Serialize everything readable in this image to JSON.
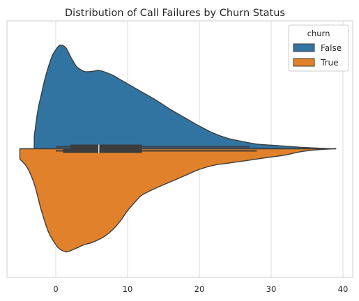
{
  "chart_data": {
    "type": "violin",
    "title": "Distribution of Call Failures by Churn Status",
    "xlabel": "",
    "ylabel": "",
    "xlim": [
      -7,
      41
    ],
    "x_ticks": [
      0,
      10,
      20,
      30,
      40
    ],
    "x_tick_labels": [
      "0",
      "10",
      "20",
      "30",
      "40"
    ],
    "grid": "vertical",
    "split": true,
    "legend": {
      "title": "churn",
      "placement": "top-right",
      "entries": [
        {
          "label": "False",
          "color": "#3274a1"
        },
        {
          "label": "True",
          "color": "#e1812c"
        }
      ]
    },
    "series": [
      {
        "name": "False",
        "side": "upper",
        "color": "#3274a1",
        "density_curve": [
          [
            -3,
            0.0
          ],
          [
            -3,
            0.12
          ],
          [
            -2.5,
            0.37
          ],
          [
            -2,
            0.53
          ],
          [
            -1.5,
            0.68
          ],
          [
            -1,
            0.8
          ],
          [
            -0.5,
            0.9
          ],
          [
            0,
            0.96
          ],
          [
            0.5,
            1.0
          ],
          [
            1,
            1.0
          ],
          [
            1.5,
            0.97
          ],
          [
            2,
            0.9
          ],
          [
            2.5,
            0.84
          ],
          [
            3,
            0.79
          ],
          [
            4,
            0.75
          ],
          [
            5,
            0.75
          ],
          [
            6,
            0.76
          ],
          [
            7,
            0.74
          ],
          [
            8,
            0.71
          ],
          [
            9,
            0.67
          ],
          [
            10,
            0.63
          ],
          [
            12,
            0.55
          ],
          [
            14,
            0.47
          ],
          [
            16,
            0.38
          ],
          [
            18,
            0.3
          ],
          [
            20,
            0.22
          ],
          [
            22,
            0.15
          ],
          [
            24,
            0.1
          ],
          [
            26,
            0.07
          ],
          [
            28,
            0.045
          ],
          [
            30,
            0.035
          ],
          [
            32,
            0.025
          ],
          [
            34,
            0.015
          ],
          [
            36,
            0.008
          ],
          [
            38,
            0.0015
          ],
          [
            39,
            0.0
          ]
        ],
        "box": {
          "q1": 2,
          "median": 6,
          "q3": 12,
          "whisker_low": 0,
          "whisker_high": 27
        }
      },
      {
        "name": "True",
        "side": "lower",
        "color": "#e1812c",
        "density_curve": [
          [
            -5,
            0.0
          ],
          [
            -5,
            0.1
          ],
          [
            -4,
            0.18
          ],
          [
            -3,
            0.34
          ],
          [
            -2,
            0.6
          ],
          [
            -1,
            0.81
          ],
          [
            0,
            0.93
          ],
          [
            0.5,
            0.97
          ],
          [
            1,
            0.99
          ],
          [
            1.5,
            1.0
          ],
          [
            2,
            0.99
          ],
          [
            3,
            0.96
          ],
          [
            4,
            0.93
          ],
          [
            5,
            0.91
          ],
          [
            6,
            0.88
          ],
          [
            7,
            0.84
          ],
          [
            8,
            0.78
          ],
          [
            9,
            0.7
          ],
          [
            10,
            0.6
          ],
          [
            11,
            0.52
          ],
          [
            12,
            0.45
          ],
          [
            14,
            0.38
          ],
          [
            16,
            0.32
          ],
          [
            18,
            0.26
          ],
          [
            20,
            0.2
          ],
          [
            22,
            0.16
          ],
          [
            24,
            0.14
          ],
          [
            26,
            0.12
          ],
          [
            28,
            0.1
          ],
          [
            30,
            0.08
          ],
          [
            32,
            0.06
          ],
          [
            34,
            0.03
          ],
          [
            36,
            0.012
          ],
          [
            38,
            0.003
          ],
          [
            39,
            0.0
          ]
        ],
        "box": {
          "q1": 1,
          "median": 6,
          "q3": 12,
          "whisker_low": 0,
          "whisker_high": 28
        }
      }
    ]
  }
}
